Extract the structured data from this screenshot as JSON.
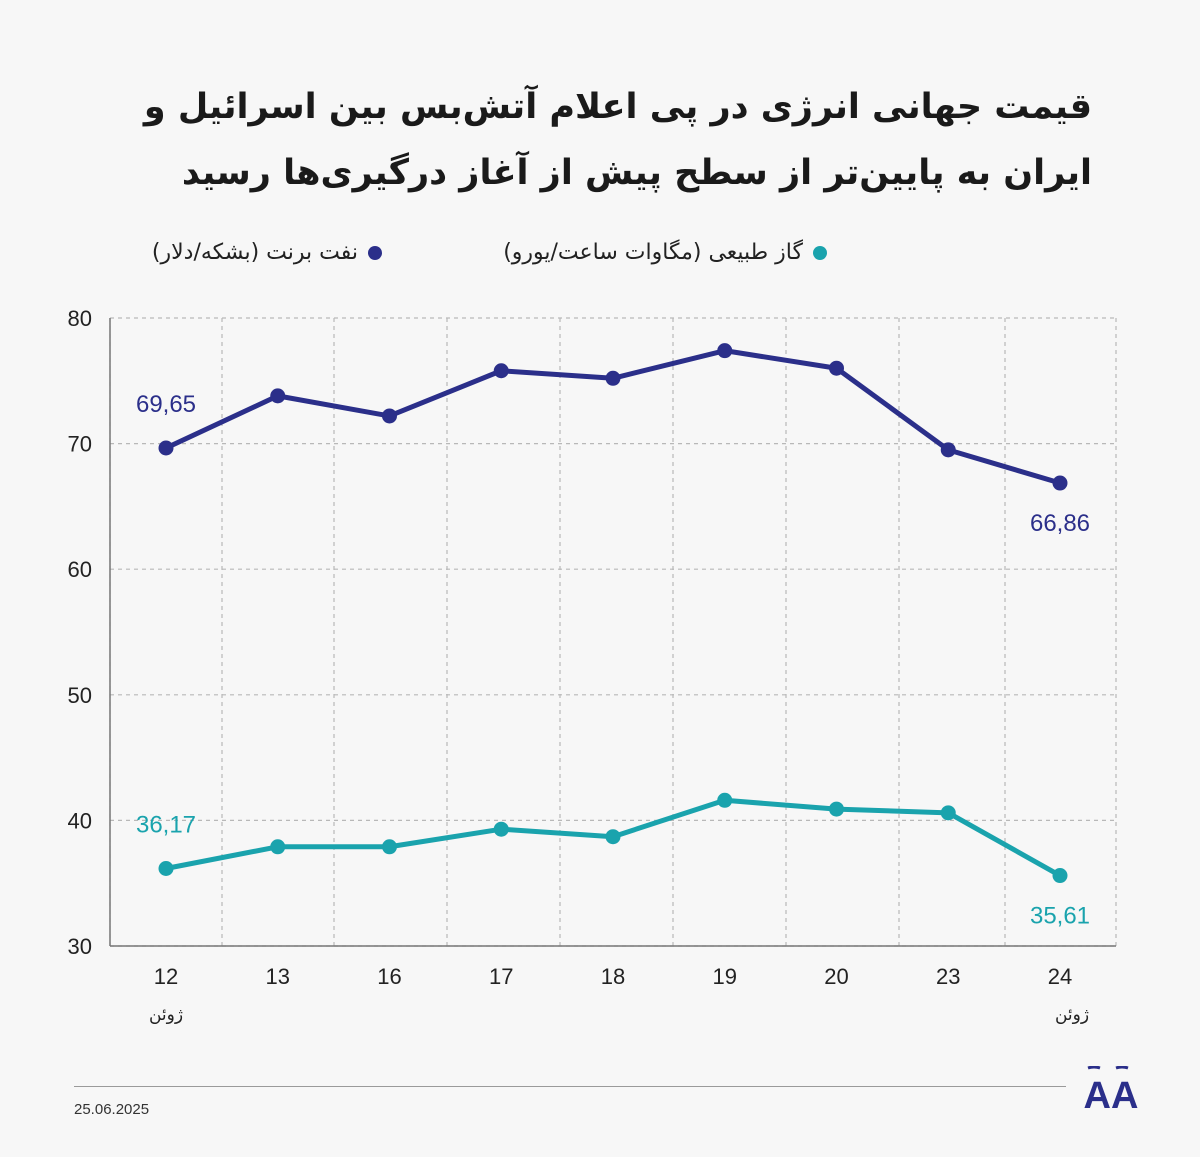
{
  "title": "قیمت جهانی انرژی در پی اعلام آتش‌بس بین اسرائیل و ایران به پایین‌تر از سطح پیش از آغاز درگیری‌ها رسید",
  "date": "25.06.2025",
  "logo_text": "AA",
  "colors": {
    "brent": "#2b2f8a",
    "gas": "#1aa3ad",
    "grid": "#b8b8b8",
    "axis": "#777777"
  },
  "chart_data": {
    "type": "line",
    "categories": [
      "12",
      "13",
      "16",
      "17",
      "18",
      "19",
      "20",
      "23",
      "24"
    ],
    "category_sublabels": {
      "first": "ژوئن",
      "last": "ژوئن"
    },
    "ylim": [
      30,
      80
    ],
    "yticks": [
      30,
      40,
      50,
      60,
      70,
      80
    ],
    "grid": true,
    "legend_position": "top",
    "series": [
      {
        "name": "نفت برنت (بشکه/دلار)",
        "key": "brent",
        "values": [
          69.65,
          73.8,
          72.2,
          75.8,
          75.2,
          77.4,
          76.0,
          69.5,
          66.86
        ],
        "labels": {
          "first": "69,65",
          "last": "66,86"
        }
      },
      {
        "name": "گاز طبیعی (مگاوات ساعت/یورو)",
        "key": "gas",
        "values": [
          36.17,
          37.9,
          37.9,
          39.3,
          38.7,
          41.6,
          40.9,
          40.6,
          35.61
        ],
        "labels": {
          "first": "36,17",
          "last": "35,61"
        }
      }
    ]
  }
}
